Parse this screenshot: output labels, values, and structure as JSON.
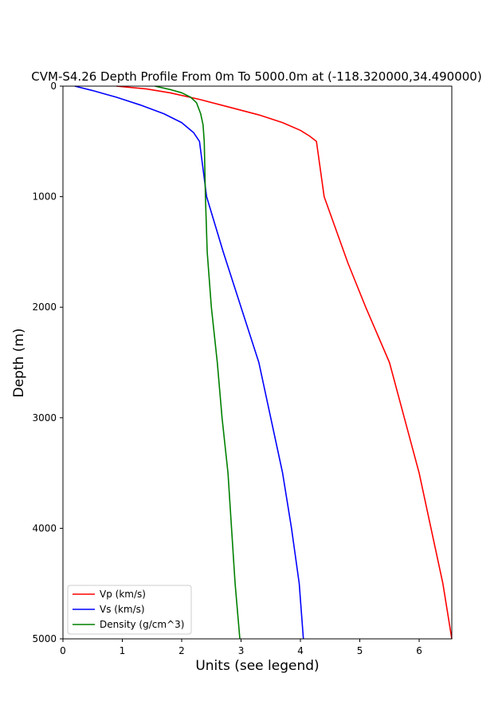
{
  "chart_data": {
    "type": "line",
    "title": "CVM-S4.26 Depth Profile From 0m To 5000.0m at (-118.320000,34.490000)",
    "xlabel": "Units (see legend)",
    "ylabel": "Depth (m)",
    "xlim": [
      0,
      6.55
    ],
    "ylim": [
      5000,
      0
    ],
    "y_inverted": true,
    "grid": false,
    "legend_position": "lower-left",
    "x_ticks": [
      "0",
      "1",
      "2",
      "3",
      "4",
      "5",
      "6"
    ],
    "y_ticks": [
      "0",
      "1000",
      "2000",
      "3000",
      "4000",
      "5000"
    ],
    "series": [
      {
        "name": "Vp (km/s)",
        "color": "#ff0000",
        "points": [
          [
            0.9,
            0
          ],
          [
            1.4,
            25
          ],
          [
            1.8,
            60
          ],
          [
            2.3,
            120
          ],
          [
            2.8,
            190
          ],
          [
            3.3,
            260
          ],
          [
            3.7,
            330
          ],
          [
            4.0,
            400
          ],
          [
            4.15,
            450
          ],
          [
            4.27,
            500
          ],
          [
            4.4,
            1000
          ],
          [
            4.8,
            1600
          ],
          [
            5.1,
            2000
          ],
          [
            5.5,
            2500
          ],
          [
            5.75,
            3000
          ],
          [
            6.0,
            3500
          ],
          [
            6.2,
            4000
          ],
          [
            6.4,
            4500
          ],
          [
            6.55,
            5000
          ]
        ]
      },
      {
        "name": "Vs (km/s)",
        "color": "#0000ff",
        "points": [
          [
            0.2,
            0
          ],
          [
            0.5,
            40
          ],
          [
            0.9,
            100
          ],
          [
            1.3,
            170
          ],
          [
            1.7,
            250
          ],
          [
            2.0,
            330
          ],
          [
            2.2,
            420
          ],
          [
            2.3,
            500
          ],
          [
            2.42,
            1000
          ],
          [
            2.7,
            1500
          ],
          [
            3.0,
            2000
          ],
          [
            3.3,
            2500
          ],
          [
            3.5,
            3000
          ],
          [
            3.7,
            3500
          ],
          [
            3.85,
            4000
          ],
          [
            3.98,
            4500
          ],
          [
            4.05,
            5000
          ]
        ]
      },
      {
        "name": "Density (g/cm^3)",
        "color": "#008000",
        "points": [
          [
            1.55,
            0
          ],
          [
            1.8,
            30
          ],
          [
            2.0,
            60
          ],
          [
            2.15,
            100
          ],
          [
            2.25,
            150
          ],
          [
            2.32,
            250
          ],
          [
            2.36,
            350
          ],
          [
            2.38,
            500
          ],
          [
            2.4,
            1000
          ],
          [
            2.43,
            1500
          ],
          [
            2.5,
            2000
          ],
          [
            2.6,
            2500
          ],
          [
            2.68,
            3000
          ],
          [
            2.78,
            3500
          ],
          [
            2.84,
            4000
          ],
          [
            2.9,
            4500
          ],
          [
            2.98,
            5000
          ]
        ]
      }
    ]
  }
}
